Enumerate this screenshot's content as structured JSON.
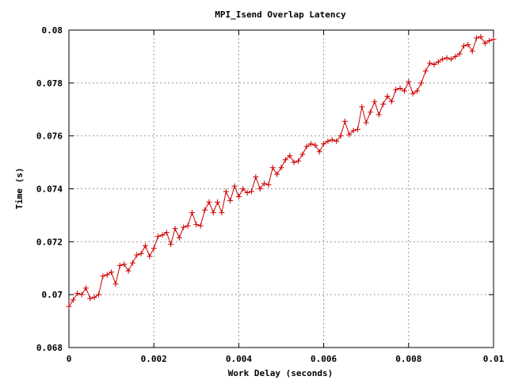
{
  "chart_data": {
    "type": "line",
    "title": "MPI_Isend Overlap Latency",
    "xlabel": "Work Delay (seconds)",
    "ylabel": "Time (s)",
    "xlim": [
      0,
      0.01
    ],
    "ylim": [
      0.068,
      0.08
    ],
    "x_ticks": [
      "0",
      "0.002",
      "0.004",
      "0.006",
      "0.008",
      "0.01"
    ],
    "y_ticks": [
      "0.068",
      "0.07",
      "0.072",
      "0.074",
      "0.076",
      "0.078",
      "0.08"
    ],
    "grid": true,
    "line_color": "#cc0000",
    "marker": "plus",
    "series": [
      {
        "x": [
          0.0,
          0.0001,
          0.0002,
          0.0003,
          0.0004,
          0.0005,
          0.0006,
          0.0007,
          0.0008,
          0.0009,
          0.001,
          0.0011,
          0.0012,
          0.0013,
          0.0014,
          0.0015,
          0.0016,
          0.0017,
          0.0018,
          0.0019,
          0.002,
          0.0021,
          0.0022,
          0.0023,
          0.0024,
          0.0025,
          0.0026,
          0.0027,
          0.0028,
          0.0029,
          0.003,
          0.0031,
          0.0032,
          0.0033,
          0.0034,
          0.0035,
          0.0036,
          0.0037,
          0.0038,
          0.0039,
          0.004,
          0.0041,
          0.0042,
          0.0043,
          0.0044,
          0.0045,
          0.0046,
          0.0047,
          0.0048,
          0.0049,
          0.005,
          0.0051,
          0.0052,
          0.0053,
          0.0054,
          0.0055,
          0.0056,
          0.0057,
          0.0058,
          0.0059,
          0.006,
          0.0061,
          0.0062,
          0.0063,
          0.0064,
          0.0065,
          0.0066,
          0.0067,
          0.0068,
          0.0069,
          0.007,
          0.0071,
          0.0072,
          0.0073,
          0.0074,
          0.0075,
          0.0076,
          0.0077,
          0.0078,
          0.0079,
          0.008,
          0.0081,
          0.0082,
          0.0083,
          0.0084,
          0.0085,
          0.0086,
          0.0087,
          0.0088,
          0.0089,
          0.009,
          0.0091,
          0.0092,
          0.0093,
          0.0094,
          0.0095,
          0.0096,
          0.0097,
          0.0098,
          0.0099,
          0.01
        ],
        "values": [
          0.06955,
          0.0698,
          0.07005,
          0.07,
          0.07025,
          0.06985,
          0.0699,
          0.07,
          0.0707,
          0.07075,
          0.07085,
          0.0704,
          0.0711,
          0.07115,
          0.0709,
          0.0712,
          0.0715,
          0.07155,
          0.07185,
          0.07145,
          0.07175,
          0.0722,
          0.07225,
          0.07235,
          0.0719,
          0.0725,
          0.07215,
          0.07255,
          0.0726,
          0.0731,
          0.07265,
          0.0726,
          0.0732,
          0.0735,
          0.0731,
          0.0735,
          0.0731,
          0.0739,
          0.07355,
          0.0741,
          0.0737,
          0.074,
          0.07385,
          0.0739,
          0.07445,
          0.074,
          0.0742,
          0.07415,
          0.0748,
          0.07455,
          0.0748,
          0.0751,
          0.07525,
          0.075,
          0.07505,
          0.0753,
          0.0756,
          0.0757,
          0.07565,
          0.0754,
          0.0757,
          0.0758,
          0.07585,
          0.0758,
          0.076,
          0.07655,
          0.07605,
          0.0762,
          0.07625,
          0.0771,
          0.0765,
          0.0769,
          0.0773,
          0.0768,
          0.0772,
          0.0775,
          0.0773,
          0.07775,
          0.0778,
          0.0777,
          0.07805,
          0.0776,
          0.0777,
          0.078,
          0.07845,
          0.07875,
          0.0787,
          0.0788,
          0.0789,
          0.07895,
          0.0789,
          0.079,
          0.0791,
          0.0794,
          0.07945,
          0.0792,
          0.0797,
          0.07975,
          0.0795,
          0.0796,
          0.07965
        ]
      }
    ]
  }
}
